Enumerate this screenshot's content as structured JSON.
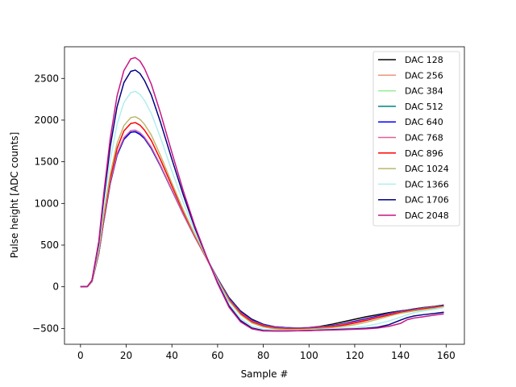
{
  "chart_data": {
    "type": "line",
    "title": "",
    "xlabel": "Sample #",
    "ylabel": "Pulse height [ADC counts]",
    "xlim": [
      -7,
      168
    ],
    "ylim": [
      -690,
      2880
    ],
    "xticks": [
      0,
      20,
      40,
      60,
      80,
      100,
      120,
      140,
      160
    ],
    "yticks": [
      -500,
      0,
      500,
      1000,
      1500,
      2000,
      2500
    ],
    "grid": false,
    "legend": "top-right",
    "x": [
      0,
      3,
      5,
      8,
      10,
      13,
      16,
      19,
      22,
      24,
      26,
      28,
      31,
      35,
      40,
      45,
      50,
      55,
      60,
      65,
      70,
      75,
      80,
      85,
      90,
      95,
      100,
      105,
      110,
      115,
      120,
      125,
      130,
      135,
      140,
      143,
      146,
      150,
      155,
      159
    ],
    "series": [
      {
        "name": "DAC 128",
        "color": "#000000",
        "values": [
          0,
          3,
          60,
          400,
          760,
          1240,
          1580,
          1770,
          1855,
          1860,
          1830,
          1780,
          1660,
          1450,
          1160,
          870,
          600,
          350,
          100,
          -130,
          -290,
          -390,
          -450,
          -480,
          -490,
          -495,
          -490,
          -475,
          -450,
          -420,
          -390,
          -360,
          -335,
          -310,
          -290,
          -280,
          -265,
          -250,
          -235,
          -220
        ]
      },
      {
        "name": "DAC 256",
        "color": "#e9967a",
        "values": [
          0,
          3,
          60,
          400,
          760,
          1240,
          1580,
          1770,
          1855,
          1860,
          1830,
          1780,
          1660,
          1450,
          1160,
          870,
          600,
          350,
          95,
          -140,
          -300,
          -400,
          -455,
          -480,
          -490,
          -495,
          -490,
          -480,
          -465,
          -440,
          -410,
          -380,
          -350,
          -320,
          -295,
          -285,
          -270,
          -255,
          -240,
          -225
        ]
      },
      {
        "name": "DAC 384",
        "color": "#90ee90",
        "values": [
          0,
          3,
          60,
          400,
          760,
          1240,
          1580,
          1770,
          1855,
          1860,
          1830,
          1780,
          1660,
          1450,
          1160,
          870,
          600,
          350,
          95,
          -140,
          -300,
          -400,
          -455,
          -482,
          -492,
          -496,
          -492,
          -482,
          -468,
          -445,
          -415,
          -385,
          -352,
          -322,
          -296,
          -286,
          -272,
          -257,
          -242,
          -227
        ]
      },
      {
        "name": "DAC 512",
        "color": "#008080",
        "values": [
          0,
          3,
          60,
          400,
          760,
          1240,
          1580,
          1770,
          1855,
          1860,
          1830,
          1780,
          1660,
          1450,
          1160,
          870,
          600,
          350,
          95,
          -140,
          -300,
          -400,
          -455,
          -482,
          -492,
          -496,
          -492,
          -482,
          -468,
          -445,
          -415,
          -385,
          -352,
          -322,
          -296,
          -286,
          -272,
          -257,
          -242,
          -227
        ]
      },
      {
        "name": "DAC 640",
        "color": "#0000ff",
        "values": [
          0,
          3,
          60,
          400,
          760,
          1240,
          1580,
          1770,
          1855,
          1860,
          1830,
          1780,
          1660,
          1450,
          1160,
          870,
          600,
          350,
          95,
          -140,
          -300,
          -400,
          -455,
          -482,
          -492,
          -496,
          -492,
          -482,
          -468,
          -445,
          -415,
          -385,
          -352,
          -322,
          -296,
          -286,
          -272,
          -257,
          -242,
          -227
        ]
      },
      {
        "name": "DAC 768",
        "color": "#e0609a",
        "values": [
          0,
          3,
          60,
          405,
          770,
          1255,
          1600,
          1790,
          1875,
          1880,
          1850,
          1795,
          1675,
          1460,
          1165,
          872,
          600,
          345,
          88,
          -150,
          -310,
          -410,
          -462,
          -488,
          -498,
          -500,
          -496,
          -486,
          -473,
          -452,
          -425,
          -395,
          -362,
          -330,
          -302,
          -290,
          -276,
          -260,
          -245,
          -230
        ]
      },
      {
        "name": "DAC 896",
        "color": "#ff0000",
        "values": [
          0,
          3,
          62,
          420,
          800,
          1300,
          1660,
          1870,
          1960,
          1970,
          1940,
          1880,
          1755,
          1525,
          1210,
          900,
          615,
          350,
          85,
          -160,
          -320,
          -420,
          -470,
          -495,
          -505,
          -505,
          -500,
          -492,
          -480,
          -462,
          -435,
          -405,
          -370,
          -338,
          -308,
          -296,
          -282,
          -266,
          -250,
          -233
        ]
      },
      {
        "name": "DAC 1024",
        "color": "#bdb76b",
        "values": [
          0,
          3,
          64,
          430,
          830,
          1350,
          1720,
          1935,
          2030,
          2040,
          2010,
          1950,
          1820,
          1575,
          1245,
          920,
          625,
          355,
          80,
          -170,
          -335,
          -435,
          -482,
          -505,
          -512,
          -512,
          -508,
          -500,
          -490,
          -475,
          -455,
          -425,
          -390,
          -352,
          -318,
          -304,
          -290,
          -275,
          -258,
          -240
        ]
      },
      {
        "name": "DAC 1366",
        "color": "#afeeee",
        "values": [
          0,
          3,
          70,
          480,
          930,
          1520,
          1950,
          2210,
          2330,
          2345,
          2310,
          2235,
          2080,
          1790,
          1390,
          1010,
          670,
          365,
          65,
          -205,
          -380,
          -475,
          -510,
          -522,
          -525,
          -522,
          -518,
          -512,
          -505,
          -498,
          -488,
          -472,
          -445,
          -410,
          -365,
          -335,
          -310,
          -290,
          -270,
          -250
        ]
      },
      {
        "name": "DAC 1706",
        "color": "#000080",
        "values": [
          0,
          3,
          75,
          520,
          1020,
          1680,
          2160,
          2450,
          2585,
          2600,
          2560,
          2475,
          2300,
          1975,
          1530,
          1100,
          710,
          370,
          50,
          -230,
          -405,
          -495,
          -525,
          -530,
          -530,
          -528,
          -525,
          -520,
          -515,
          -510,
          -505,
          -498,
          -485,
          -455,
          -400,
          -370,
          -350,
          -335,
          -320,
          -305
        ]
      },
      {
        "name": "DAC 2048",
        "color": "#c71585",
        "values": [
          0,
          3,
          78,
          545,
          1075,
          1780,
          2290,
          2595,
          2735,
          2750,
          2710,
          2620,
          2430,
          2085,
          1610,
          1150,
          735,
          375,
          40,
          -245,
          -420,
          -505,
          -530,
          -532,
          -530,
          -528,
          -525,
          -522,
          -518,
          -515,
          -510,
          -505,
          -495,
          -475,
          -440,
          -395,
          -375,
          -360,
          -340,
          -325
        ]
      }
    ]
  }
}
